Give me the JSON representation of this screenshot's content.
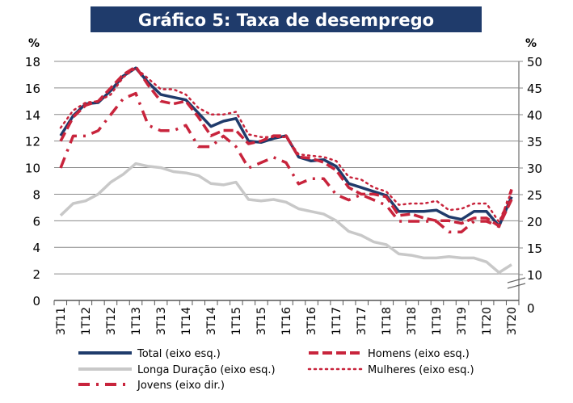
{
  "chart_data": {
    "type": "line",
    "title": "Gráfico 5: Taxa de desemprego",
    "ylabel_left": "%",
    "ylabel_right": "%",
    "ylim_left": [
      0,
      18
    ],
    "yticks_left": [
      0,
      2,
      4,
      6,
      8,
      10,
      12,
      14,
      16,
      18
    ],
    "ylim_right": [
      0,
      50
    ],
    "yticks_right": [
      0,
      10,
      15,
      20,
      25,
      30,
      35,
      40,
      45,
      50
    ],
    "right_axis_break": true,
    "grid": true,
    "x": [
      "3T11",
      "4T11",
      "1T12",
      "2T12",
      "3T12",
      "4T12",
      "1T13",
      "2T13",
      "3T13",
      "4T13",
      "1T14",
      "2T14",
      "3T14",
      "4T14",
      "1T15",
      "2T15",
      "3T15",
      "4T15",
      "1T16",
      "2T16",
      "3T16",
      "4T16",
      "1T17",
      "2T17",
      "3T17",
      "4T17",
      "1T18",
      "2T18",
      "3T18",
      "4T18",
      "1T19",
      "2T19",
      "3T19",
      "4T19",
      "1T20",
      "2T20",
      "3T20"
    ],
    "xtick_labels": [
      "3T11",
      "1T12",
      "3T12",
      "1T13",
      "3T13",
      "1T14",
      "3T14",
      "1T15",
      "3T15",
      "1T16",
      "3T16",
      "1T17",
      "3T17",
      "1T18",
      "3T18",
      "1T19",
      "3T19",
      "1T20",
      "3T20"
    ],
    "legend_placement": "bottom",
    "series": [
      {
        "name": "Total (eixo esq.)",
        "axis": "left",
        "color": "#1f3b6b",
        "style": "solid",
        "values": [
          12.4,
          13.9,
          14.8,
          14.9,
          15.8,
          16.9,
          17.5,
          16.4,
          15.5,
          15.3,
          15.1,
          14.1,
          13.1,
          13.5,
          13.7,
          12.0,
          11.9,
          12.2,
          12.4,
          10.8,
          10.5,
          10.6,
          10.1,
          8.8,
          8.5,
          8.2,
          7.9,
          6.7,
          6.7,
          6.7,
          6.8,
          6.3,
          6.1,
          6.7,
          6.7,
          5.6,
          7.8
        ]
      },
      {
        "name": "Longa Duração (eixo esq.)",
        "axis": "left",
        "color": "#c8c8c8",
        "style": "solid",
        "values": [
          6.4,
          7.3,
          7.5,
          8.0,
          8.9,
          9.5,
          10.3,
          10.1,
          10.0,
          9.7,
          9.6,
          9.4,
          8.8,
          8.7,
          8.9,
          7.6,
          7.5,
          7.6,
          7.4,
          6.9,
          6.7,
          6.5,
          6.0,
          5.2,
          4.9,
          4.4,
          4.2,
          3.5,
          3.4,
          3.2,
          3.2,
          3.3,
          3.2,
          3.2,
          2.9,
          2.1,
          2.7
        ]
      },
      {
        "name": "Jovens (eixo dir.)",
        "axis": "right",
        "color": "#c8243c",
        "style": "dashdot",
        "values": [
          30,
          36,
          36,
          37,
          40,
          43,
          44,
          38,
          37,
          37,
          38,
          34,
          34,
          36,
          34,
          30,
          31,
          32,
          31,
          27,
          28,
          28,
          25,
          24,
          25,
          24,
          23,
          20,
          20,
          20,
          20,
          18,
          18,
          20,
          20,
          19,
          26
        ]
      },
      {
        "name": "Homens (eixo esq.)",
        "axis": "left",
        "color": "#c8243c",
        "style": "dashed",
        "values": [
          12.0,
          13.8,
          14.7,
          15.0,
          16.0,
          17.0,
          17.6,
          16.2,
          15.0,
          14.8,
          15.0,
          13.8,
          12.4,
          12.8,
          12.8,
          11.8,
          12.0,
          12.4,
          12.4,
          10.8,
          10.7,
          10.4,
          9.8,
          8.5,
          8.0,
          8.0,
          7.8,
          6.4,
          6.5,
          6.2,
          6.0,
          6.0,
          5.8,
          6.2,
          6.2,
          5.6,
          7.6
        ]
      },
      {
        "name": "Mulheres (eixo esq.)",
        "axis": "left",
        "color": "#c8243c",
        "style": "dotted",
        "values": [
          13.0,
          14.3,
          14.9,
          15.0,
          15.5,
          16.8,
          17.5,
          16.7,
          15.9,
          15.9,
          15.5,
          14.5,
          14.0,
          14.0,
          14.2,
          12.5,
          12.3,
          12.3,
          12.3,
          11.0,
          10.9,
          10.8,
          10.5,
          9.3,
          9.1,
          8.5,
          8.2,
          7.2,
          7.3,
          7.3,
          7.5,
          6.8,
          6.9,
          7.3,
          7.3,
          5.9,
          8.2
        ]
      }
    ]
  }
}
